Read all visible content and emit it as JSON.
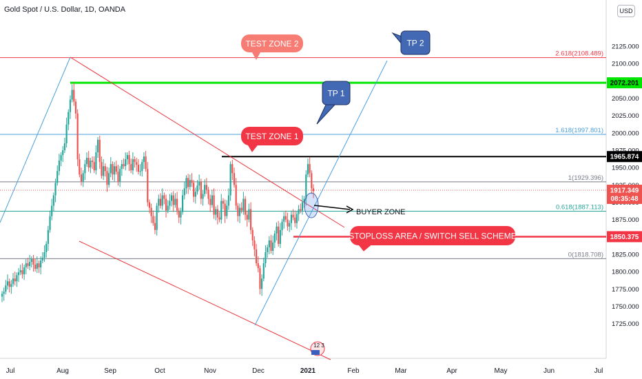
{
  "header": {
    "symbol_title": "Gold Spot / U.S. Dollar, 1D, OANDA",
    "currency": "USD"
  },
  "colors": {
    "up": "#26a69a",
    "down": "#ef5350",
    "green_line": "#00e600",
    "red_line": "#f23645",
    "channel": "#e8333a",
    "fib_blue": "#4a9fd8",
    "callout_red": "#f23645",
    "callout_salmon": "#f77c74",
    "callout_blue": "#4469b4"
  },
  "chart_data": {
    "type": "candlestick",
    "x_ticks": [
      "Jul",
      "Aug",
      "Sep",
      "Oct",
      "Nov",
      "Dec",
      "2021",
      "Feb",
      "Mar",
      "Apr",
      "May",
      "Jun",
      "Jul"
    ],
    "y_ticks": [
      1725,
      1750,
      1775,
      1800,
      1825,
      1850,
      1875,
      1900,
      1925,
      1950,
      1975,
      2000,
      2025,
      2050,
      2075,
      2100,
      2125
    ],
    "y_range": [
      1722,
      2140
    ],
    "candles_close": [
      1768,
      1771,
      1780,
      1786,
      1778,
      1782,
      1790,
      1786,
      1795,
      1799,
      1802,
      1796,
      1806,
      1812,
      1808,
      1814,
      1818,
      1810,
      1804,
      1812,
      1806,
      1816,
      1820,
      1828,
      1840,
      1860,
      1880,
      1895,
      1910,
      1928,
      1945,
      1960,
      1968,
      1975,
      1985,
      2012,
      2030,
      2048,
      2062,
      2045,
      2028,
      1962,
      1940,
      1930,
      1942,
      1955,
      1964,
      1950,
      1960,
      1958,
      1946,
      1972,
      1990,
      1958,
      1938,
      1952,
      1945,
      1925,
      1942,
      1955,
      1940,
      1952,
      1944,
      1930,
      1948,
      1955,
      1952,
      1962,
      1968,
      1955,
      1946,
      1962,
      1958,
      1954,
      1944,
      1945,
      1958,
      1966,
      1948,
      1900,
      1892,
      1880,
      1870,
      1860,
      1895,
      1905,
      1895,
      1910,
      1905,
      1888,
      1895,
      1902,
      1910,
      1896,
      1905,
      1888,
      1878,
      1886,
      1910,
      1920,
      1935,
      1922,
      1932,
      1928,
      1908,
      1915,
      1924,
      1930,
      1905,
      1912,
      1925,
      1918,
      1905,
      1896,
      1910,
      1882,
      1890,
      1878,
      1875,
      1902,
      1898,
      1880,
      1895,
      1910,
      1955,
      1942,
      1925,
      1895,
      1880,
      1892,
      1888,
      1905,
      1882,
      1875,
      1890,
      1860,
      1845,
      1832,
      1812,
      1805,
      1775,
      1790,
      1812,
      1828,
      1835,
      1845,
      1830,
      1842,
      1855,
      1865,
      1840,
      1860,
      1872,
      1880,
      1875,
      1865,
      1870,
      1882,
      1878,
      1870,
      1883,
      1890,
      1888,
      1900,
      1905,
      1940,
      1955,
      1942,
      1920,
      1916
    ],
    "levels": [
      {
        "label": "2.618(2108.489)",
        "value": 2108.489,
        "color": "#f23645"
      },
      {
        "label": "1.618(1997.801)",
        "value": 1997.801,
        "color": "#4a9fd8"
      },
      {
        "label": "1(1929.396)",
        "value": 1929.396,
        "color": "#787b86"
      },
      {
        "label": "0.618(1887.113)",
        "value": 1887.113,
        "color": "#26a69a"
      },
      {
        "label": "0(1818.708)",
        "value": 1818.708,
        "color": "#787b86"
      }
    ],
    "price_labels": [
      {
        "text": "2072.201",
        "value": 2072.201,
        "bg": "#00e600",
        "fg": "#000000"
      },
      {
        "text": "1965.874",
        "value": 1965.874,
        "bg": "#000000",
        "fg": "#ffffff"
      },
      {
        "text": "1917.349",
        "value": 1917.349,
        "bg": "#ef5350",
        "fg": "#ffffff"
      },
      {
        "text": "08:35:48",
        "value": 1905.5,
        "bg": "#ef5350",
        "fg": "#ffffff"
      },
      {
        "text": "1850.375",
        "value": 1850.375,
        "bg": "#f23645",
        "fg": "#ffffff"
      }
    ],
    "annotations": [
      {
        "text": "TEST ZONE 2",
        "style": "salmon"
      },
      {
        "text": "TEST ZONE 1",
        "style": "red"
      },
      {
        "text": "TP 1",
        "style": "blue"
      },
      {
        "text": "TP 2",
        "style": "blue"
      },
      {
        "text": "STOPLOSS AREA / SWITCH SELL SCHEME",
        "style": "red"
      },
      {
        "text": "BUYER ZONE",
        "style": "plain"
      }
    ],
    "event_badge": "12 3"
  }
}
